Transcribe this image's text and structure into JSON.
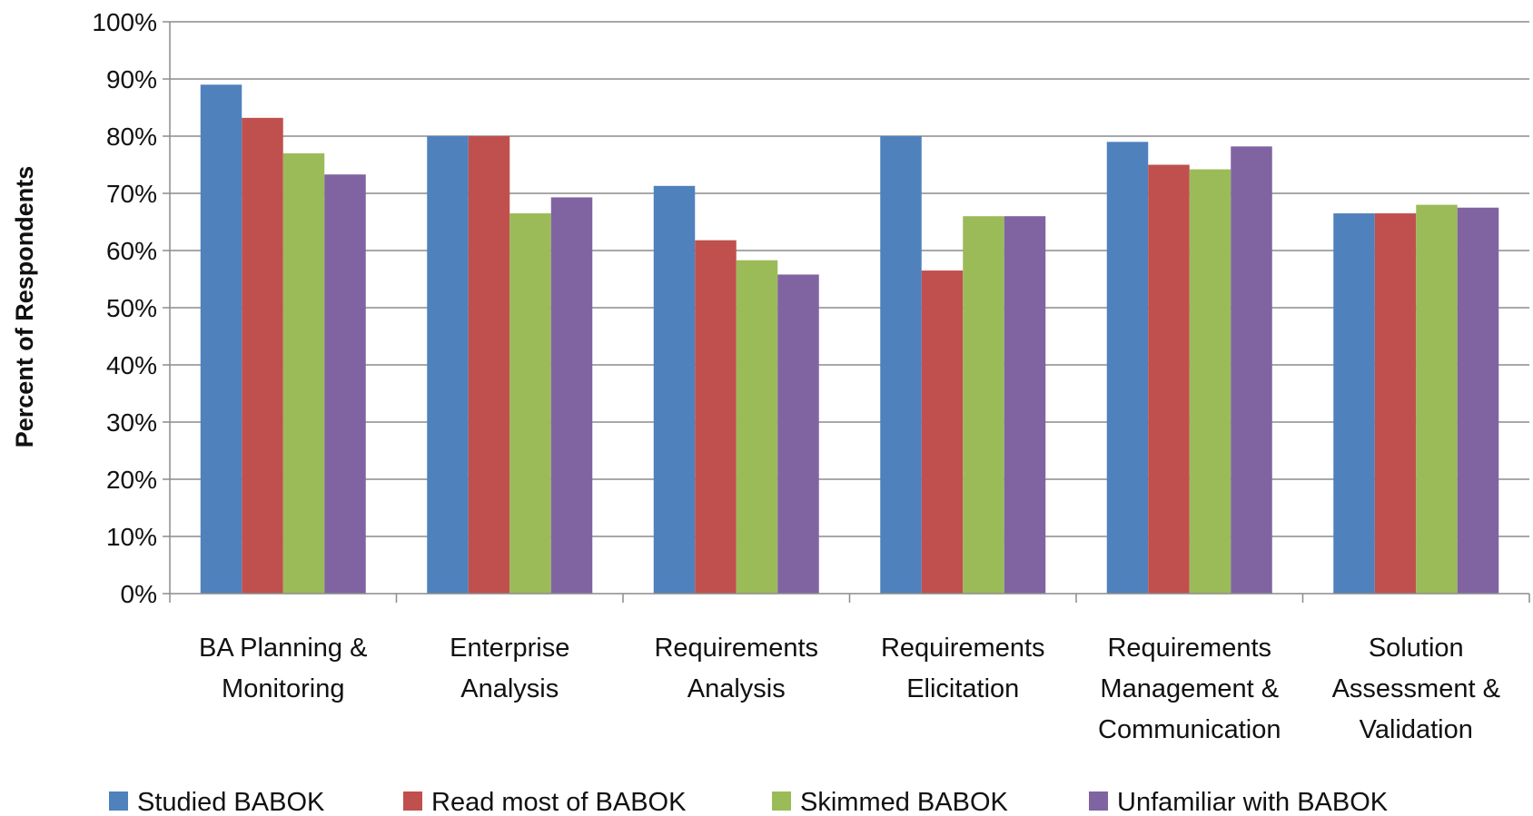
{
  "chart_data": {
    "type": "bar",
    "title": "",
    "xlabel": "",
    "ylabel": "Percent of Respondents",
    "ylim": [
      0,
      100
    ],
    "y_ticks": [
      "0%",
      "10%",
      "20%",
      "30%",
      "40%",
      "50%",
      "60%",
      "70%",
      "80%",
      "90%",
      "100%"
    ],
    "grid": true,
    "legend_position": "bottom",
    "categories": [
      [
        "BA Planning &",
        "Monitoring"
      ],
      [
        "Enterprise",
        "Analysis"
      ],
      [
        "Requirements",
        "Analysis"
      ],
      [
        "Requirements",
        "Elicitation"
      ],
      [
        "Requirements",
        "Management &",
        "Communication"
      ],
      [
        "Solution",
        "Assessment &",
        "Validation"
      ]
    ],
    "series": [
      {
        "name": "Studied BABOK",
        "color": "#4F81BD",
        "values": [
          89,
          80,
          71.3,
          80,
          79,
          66.5
        ]
      },
      {
        "name": "Read most of BABOK",
        "color": "#C0504D",
        "values": [
          83.2,
          80,
          61.8,
          56.5,
          75,
          66.5
        ]
      },
      {
        "name": "Skimmed BABOK",
        "color": "#9BBB59",
        "values": [
          77,
          66.5,
          58.3,
          66,
          74.2,
          68
        ]
      },
      {
        "name": "Unfamiliar with BABOK",
        "color": "#8064A2",
        "values": [
          73.3,
          69.3,
          55.8,
          66,
          78.2,
          67.5
        ]
      }
    ]
  }
}
